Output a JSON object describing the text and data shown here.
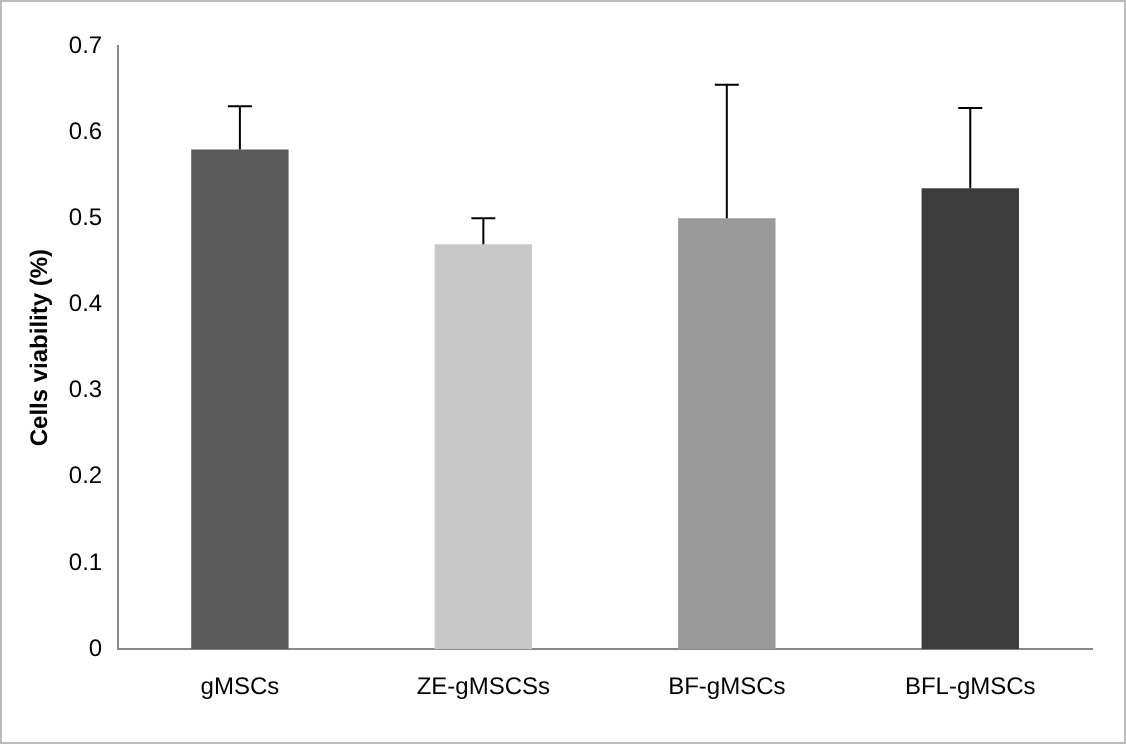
{
  "chart_data": {
    "type": "bar",
    "ylabel": "Cells viability (%)",
    "categories": [
      "gMSCs",
      "ZE-gMSCSs",
      "BF-gMSCs",
      "BFL-gMSCs"
    ],
    "values": [
      0.58,
      0.47,
      0.5,
      0.535
    ],
    "errors": [
      [
        0.58,
        0.63
      ],
      [
        0.47,
        0.5
      ],
      [
        0.5,
        0.655
      ],
      [
        0.535,
        0.628
      ]
    ],
    "colors": [
      "#5a5a5a",
      "#c8c8c8",
      "#9a9a9a",
      "#3c3c3c"
    ],
    "ylim": [
      0,
      0.7
    ],
    "yticks": [
      0,
      0.1,
      0.2,
      0.3,
      0.4,
      0.5,
      0.6,
      0.7
    ],
    "grid": false,
    "legend": false
  }
}
